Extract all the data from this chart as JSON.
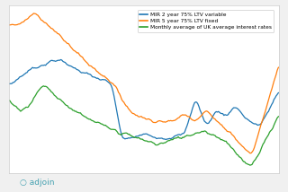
{
  "legend_labels": [
    "MIR 2 year 75% LTV variable",
    "MIR 5 year 75% LTV fixed",
    "Monthly average of UK average interest rates"
  ],
  "colors": [
    "#1f77b4",
    "#ff7f0e",
    "#2ca02c"
  ],
  "background_color": "#f0f0f0",
  "plot_background": "#ffffff",
  "watermark": "○ adjoin",
  "watermark_color": "#3399aa",
  "n_points": 250,
  "figsize": [
    3.2,
    2.14
  ],
  "dpi": 100
}
